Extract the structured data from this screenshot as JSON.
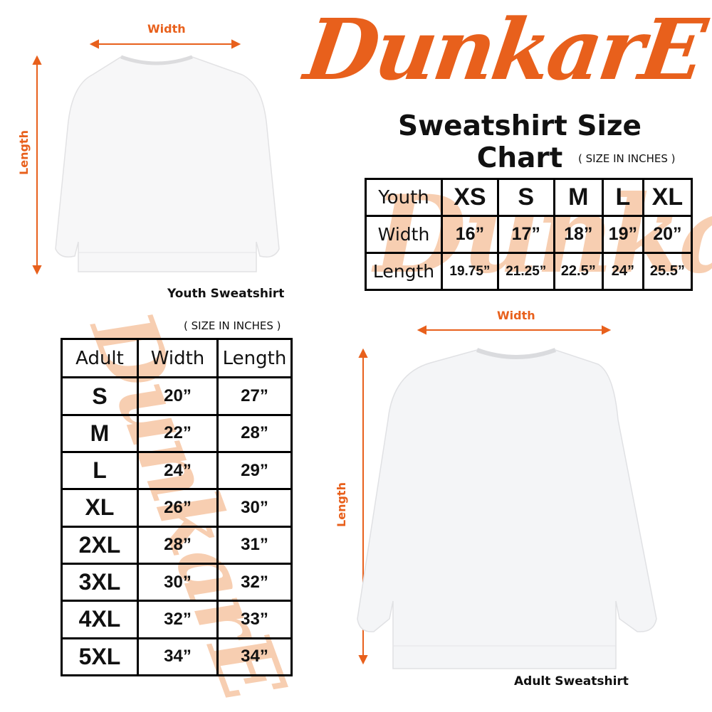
{
  "brand": {
    "logo_text": "DunkarE",
    "color": "#e8601c"
  },
  "title": "Sweatshirt Size Chart",
  "youth": {
    "note": "( SIZE IN INCHES )",
    "caption": "Youth Sweatshirt",
    "width_label": "Width",
    "length_label": "Length",
    "table": {
      "header": [
        "Youth",
        "XS",
        "S",
        "M",
        "L",
        "XL"
      ],
      "rows": [
        [
          "Width",
          "16”",
          "17”",
          "18”",
          "19”",
          "20”"
        ],
        [
          "Length",
          "19.75”",
          "21.25”",
          "22.5”",
          "24”",
          "25.5”"
        ]
      ]
    }
  },
  "adult": {
    "note": "( SIZE IN INCHES )",
    "caption": "Adult Sweatshirt",
    "width_label": "Width",
    "length_label": "Length",
    "table": {
      "header": [
        "Adult",
        "Width",
        "Length"
      ],
      "rows": [
        [
          "S",
          "20”",
          "27”"
        ],
        [
          "M",
          "22”",
          "28”"
        ],
        [
          "L",
          "24”",
          "29”"
        ],
        [
          "XL",
          "26”",
          "30”"
        ],
        [
          "2XL",
          "28”",
          "31”"
        ],
        [
          "3XL",
          "30”",
          "32”"
        ],
        [
          "4XL",
          "32”",
          "33”"
        ],
        [
          "5XL",
          "34”",
          "34”"
        ]
      ]
    }
  }
}
